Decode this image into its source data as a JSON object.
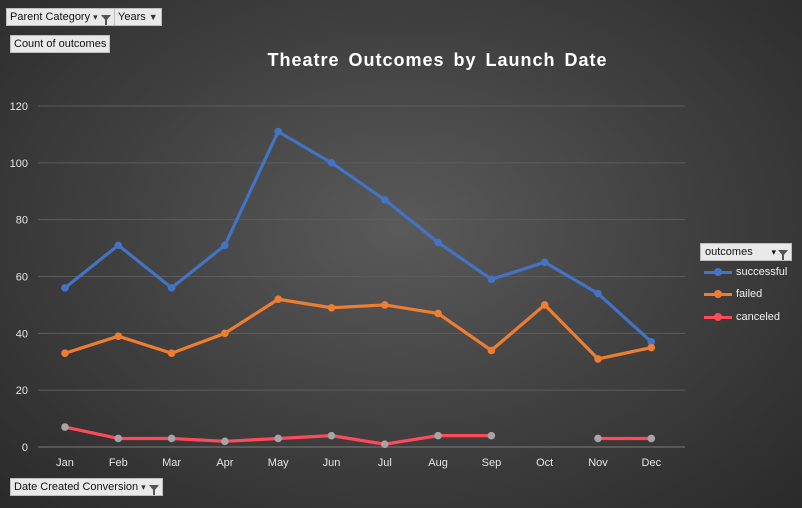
{
  "filters": {
    "parent_category": "Parent Category",
    "years": "Years",
    "count_label": "Count of outcomes",
    "date_conversion": "Date Created Conversion"
  },
  "legend": {
    "title": "outcomes",
    "items": [
      "successful",
      "failed",
      "canceled"
    ]
  },
  "colors": {
    "successful": "#4472c4",
    "failed": "#ed7d31",
    "canceled": "#ff4a5a",
    "canceled_marker": "#a5a5a5"
  },
  "chart_data": {
    "type": "line",
    "title": "Theatre Outcomes by Launch Date",
    "categories": [
      "Jan",
      "Feb",
      "Mar",
      "Apr",
      "May",
      "Jun",
      "Jul",
      "Aug",
      "Sep",
      "Oct",
      "Nov",
      "Dec"
    ],
    "yticks": [
      "0",
      "20",
      "40",
      "60",
      "80",
      "100",
      "120"
    ],
    "ylim": [
      0,
      120
    ],
    "grid": true,
    "legend_position": "right",
    "series": [
      {
        "name": "successful",
        "values": [
          56,
          71,
          56,
          71,
          111,
          100,
          87,
          72,
          59,
          65,
          54,
          37
        ]
      },
      {
        "name": "failed",
        "values": [
          33,
          39,
          33,
          40,
          52,
          49,
          50,
          47,
          34,
          50,
          31,
          35
        ]
      },
      {
        "name": "canceled",
        "values": [
          7,
          3,
          3,
          2,
          3,
          4,
          1,
          4,
          4,
          null,
          3,
          3
        ]
      }
    ]
  }
}
